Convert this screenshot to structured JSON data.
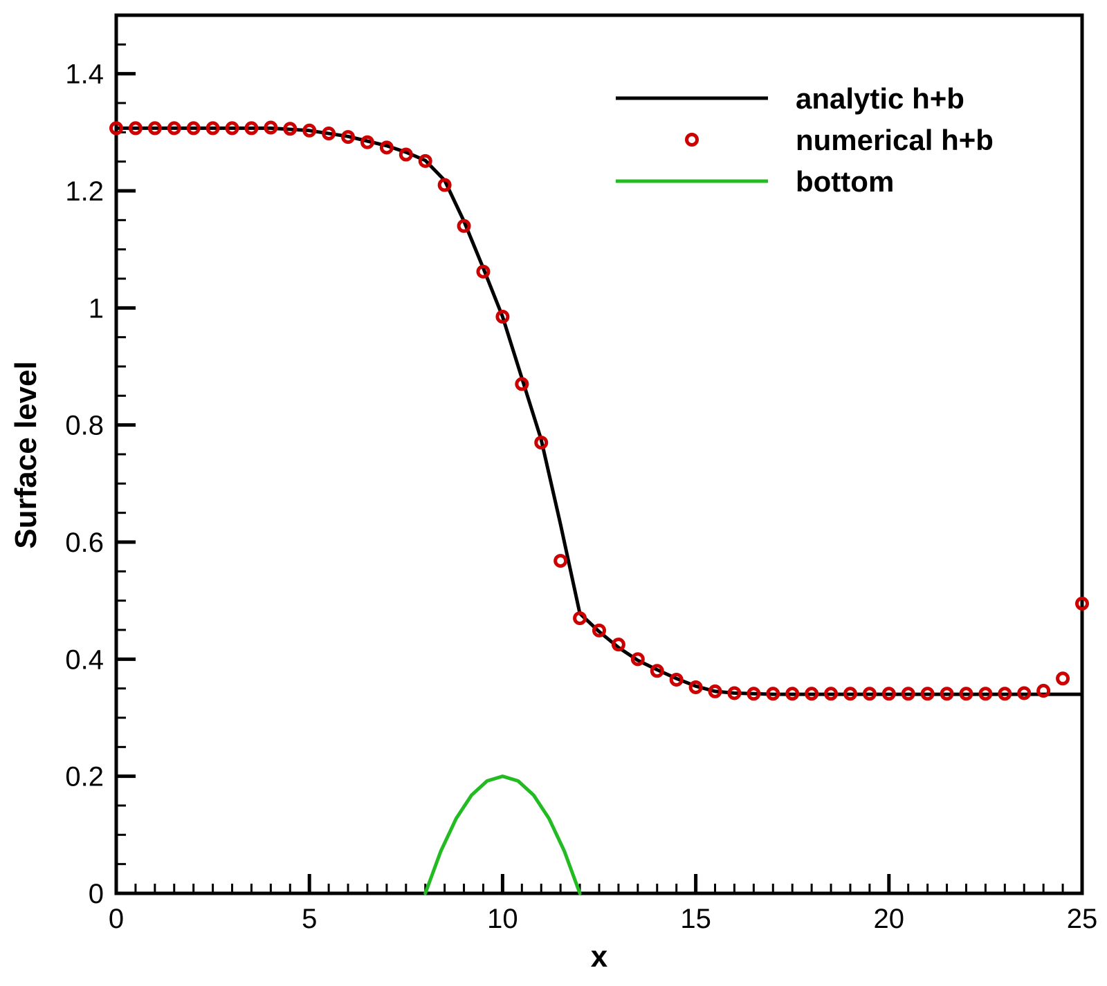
{
  "chart_data": {
    "type": "line",
    "title": "",
    "xlabel": "x",
    "ylabel": "Surface level",
    "xlim": [
      0,
      25
    ],
    "ylim": [
      0,
      1.5
    ],
    "x_ticks": [
      0,
      5,
      10,
      15,
      20,
      25
    ],
    "x_tick_labels": [
      "0",
      "5",
      "10",
      "15",
      "20",
      "25"
    ],
    "y_ticks": [
      0,
      0.2,
      0.4,
      0.6,
      0.8,
      1,
      1.2,
      1.4
    ],
    "y_tick_labels": [
      "0",
      "0.2",
      "0.4",
      "0.6",
      "0.8",
      "1",
      "1.2",
      "1.4"
    ],
    "grid": false,
    "legend_position": "top-right",
    "series": [
      {
        "name": "analytic h+b",
        "style": "line",
        "color": "#000000",
        "x": [
          0,
          2,
          4,
          5,
          6,
          7,
          7.5,
          8,
          8.5,
          9,
          9.5,
          10,
          10.5,
          11,
          11.5,
          12,
          12.5,
          13,
          13.5,
          14,
          14.5,
          15,
          15.5,
          16,
          17,
          18,
          20,
          25
        ],
        "y": [
          1.307,
          1.307,
          1.307,
          1.303,
          1.293,
          1.277,
          1.266,
          1.252,
          1.218,
          1.148,
          1.068,
          0.985,
          0.88,
          0.775,
          0.63,
          0.478,
          0.447,
          0.42,
          0.398,
          0.382,
          0.367,
          0.354,
          0.345,
          0.342,
          0.34,
          0.34,
          0.34,
          0.34
        ]
      },
      {
        "name": "numerical h+b",
        "style": "markers",
        "color": "#cc0000",
        "x": [
          0,
          0.5,
          1,
          1.5,
          2,
          2.5,
          3,
          3.5,
          4,
          4.5,
          5,
          5.5,
          6,
          6.5,
          7,
          7.5,
          8,
          8.5,
          9,
          9.5,
          10,
          10.5,
          11,
          11.5,
          12,
          12.5,
          13,
          13.5,
          14,
          14.5,
          15,
          15.5,
          16,
          16.5,
          17,
          17.5,
          18,
          18.5,
          19,
          19.5,
          20,
          20.5,
          21,
          21.5,
          22,
          22.5,
          23,
          23.5,
          24,
          24.5,
          25
        ],
        "y": [
          1.307,
          1.307,
          1.307,
          1.307,
          1.307,
          1.307,
          1.307,
          1.307,
          1.308,
          1.306,
          1.303,
          1.298,
          1.292,
          1.283,
          1.274,
          1.262,
          1.251,
          1.21,
          1.14,
          1.062,
          0.985,
          0.87,
          0.77,
          0.568,
          0.47,
          0.449,
          0.425,
          0.4,
          0.38,
          0.365,
          0.352,
          0.345,
          0.342,
          0.341,
          0.341,
          0.341,
          0.341,
          0.341,
          0.341,
          0.341,
          0.341,
          0.341,
          0.341,
          0.341,
          0.341,
          0.341,
          0.341,
          0.342,
          0.346,
          0.367,
          0.495
        ]
      },
      {
        "name": "bottom",
        "style": "line",
        "color": "#22bb22",
        "x": [
          8,
          8.4,
          8.8,
          9.2,
          9.6,
          10,
          10.4,
          10.8,
          11.2,
          11.6,
          12
        ],
        "y": [
          0,
          0.072,
          0.128,
          0.168,
          0.192,
          0.2,
          0.192,
          0.168,
          0.128,
          0.072,
          0
        ]
      }
    ]
  }
}
